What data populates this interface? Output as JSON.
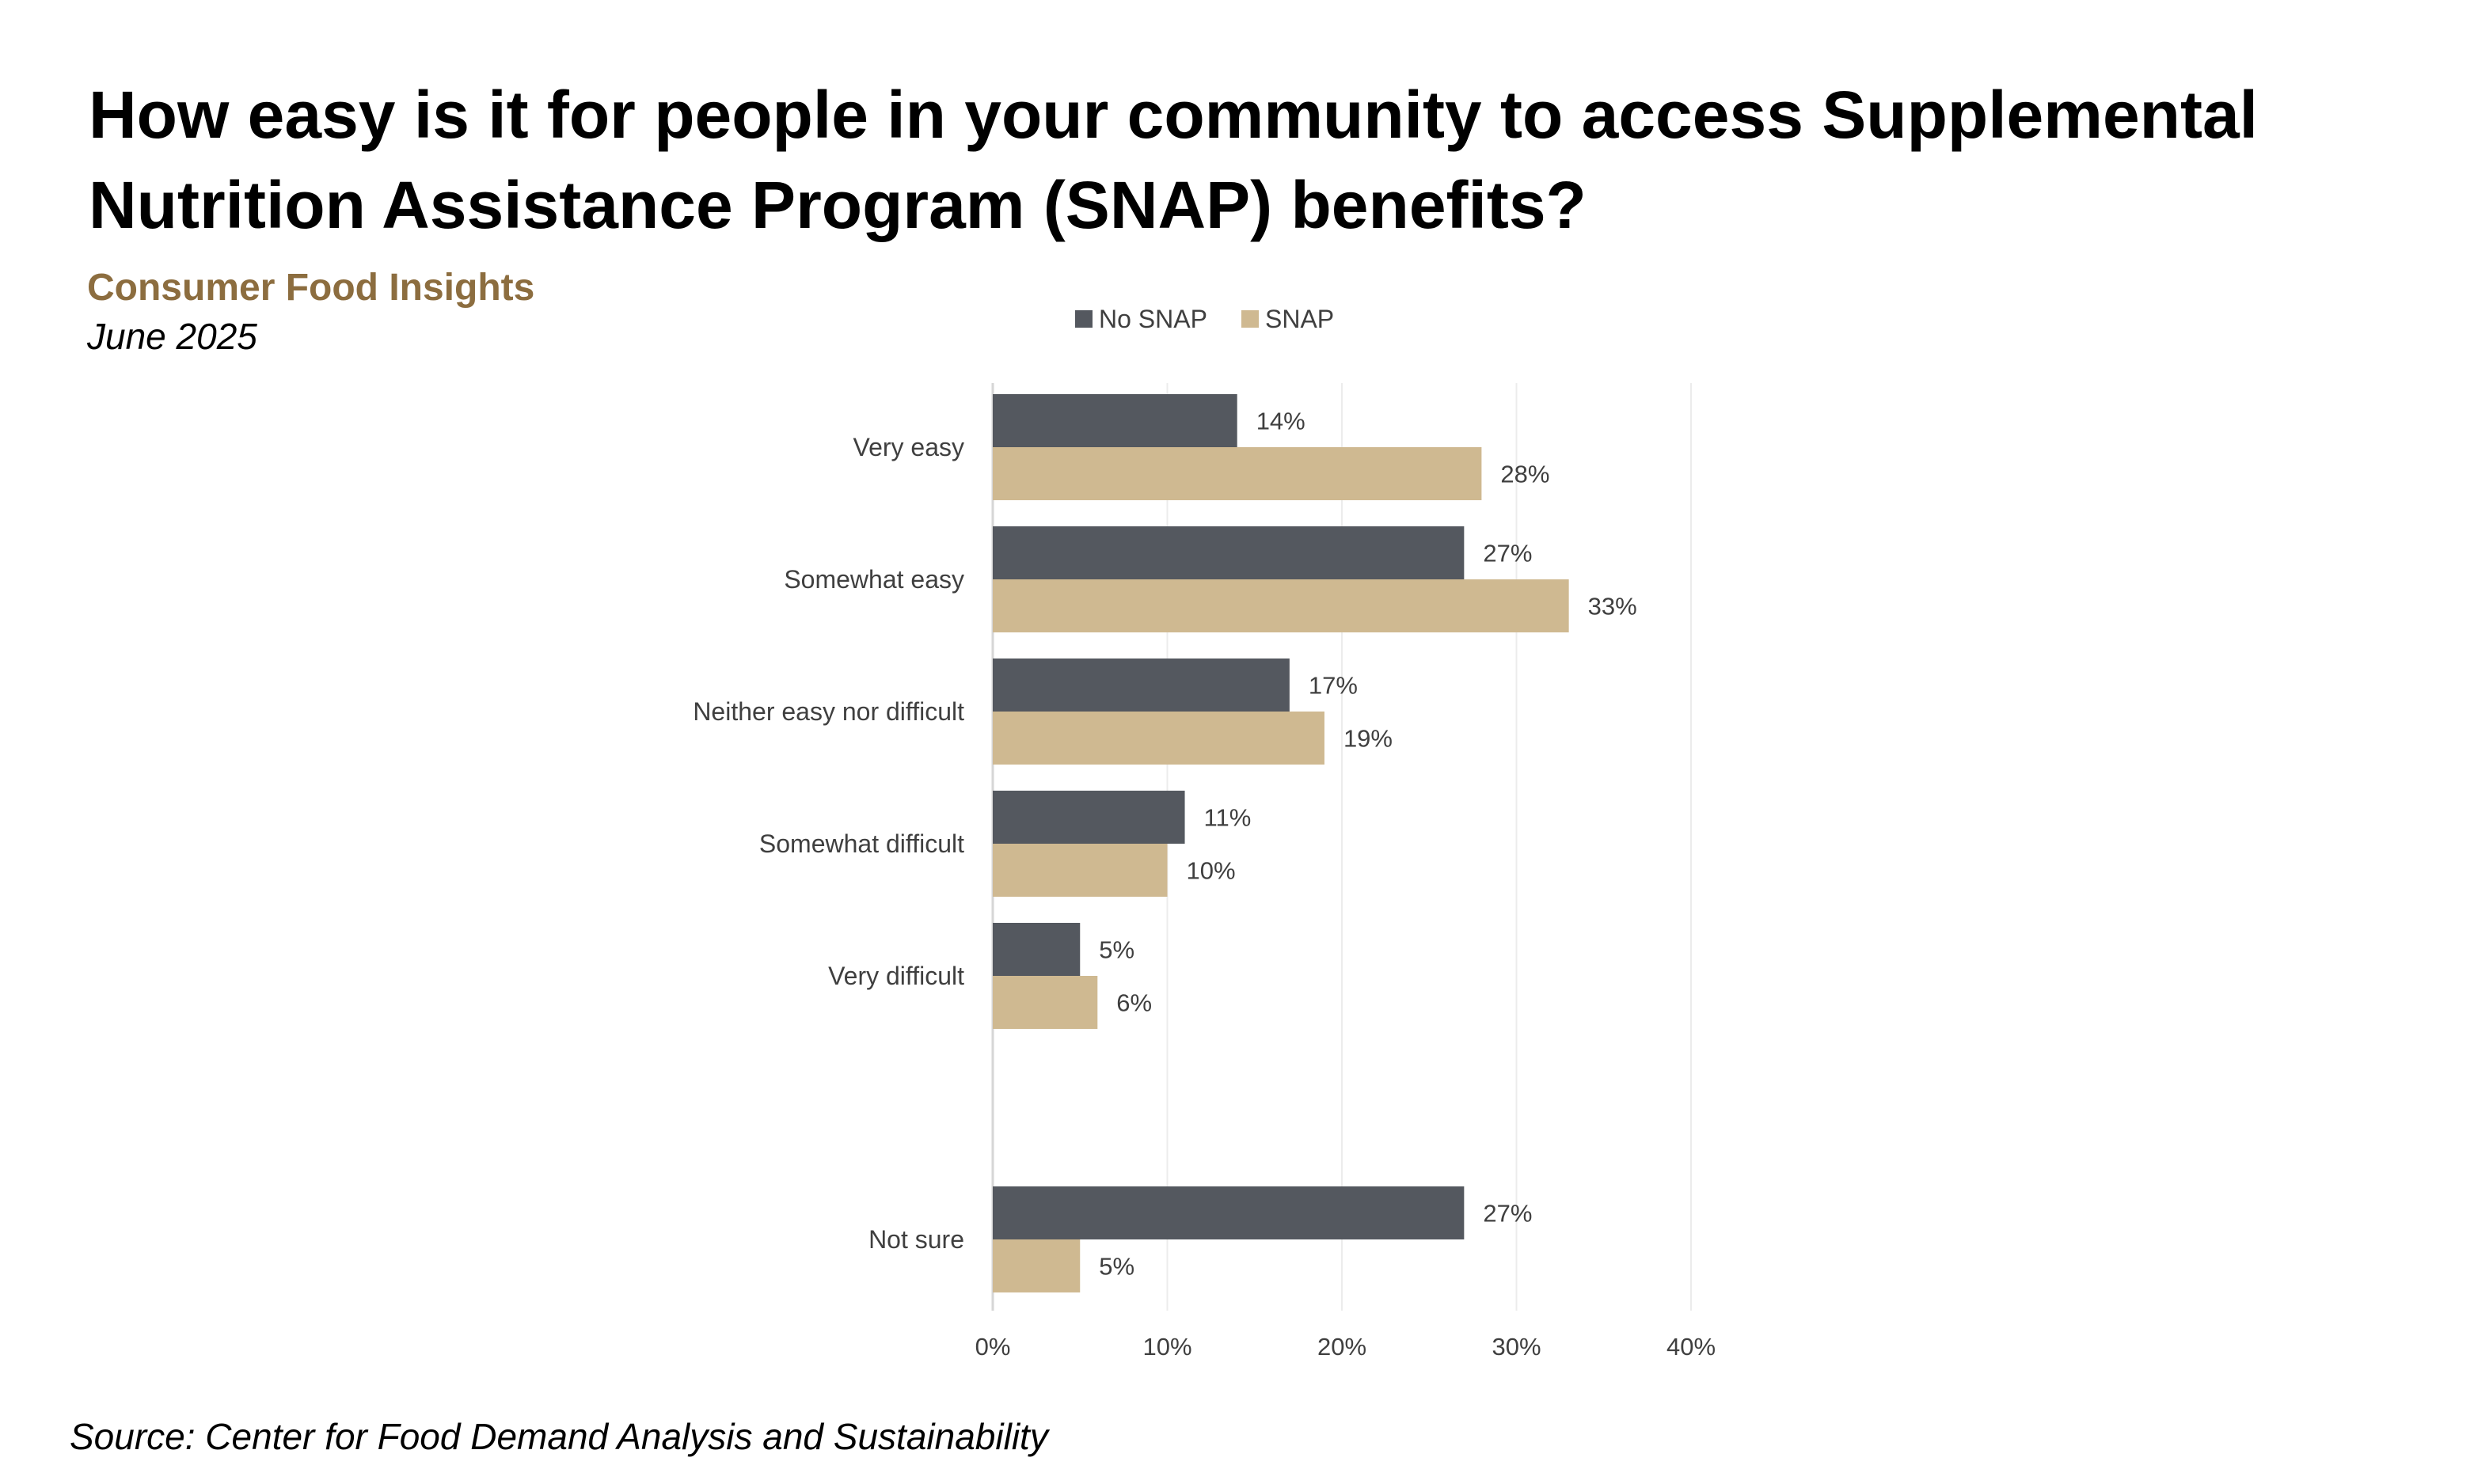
{
  "title": "How easy is it for people in your community to access Supplemental Nutrition Assistance Program (SNAP) benefits?",
  "subtitle": "Consumer Food Insights",
  "date": "June 2025",
  "source": "Source:  Center for Food Demand Analysis and Sustainability",
  "chart_data": {
    "type": "bar",
    "orientation": "horizontal",
    "categories": [
      "Very easy",
      "Somewhat easy",
      "Neither easy nor difficult",
      "Somewhat difficult",
      "Very difficult",
      "Not sure"
    ],
    "series": [
      {
        "name": "No SNAP",
        "color": "#54585f",
        "values": [
          14,
          27,
          17,
          11,
          5,
          27
        ],
        "labels": [
          "14%",
          "27%",
          "17%",
          "11%",
          "5%",
          "27%"
        ]
      },
      {
        "name": "SNAP",
        "color": "#cfb991",
        "values": [
          28,
          33,
          19,
          10,
          6,
          5
        ],
        "labels": [
          "28%",
          "33%",
          "19%",
          "10%",
          "6%",
          "5%"
        ]
      }
    ],
    "xlim": [
      0,
      40
    ],
    "xticks": [
      0,
      10,
      20,
      30,
      40
    ],
    "xtick_labels": [
      "0%",
      "10%",
      "20%",
      "30%",
      "40%"
    ],
    "grid": true,
    "legend": "top-center",
    "xlabel": "",
    "ylabel": ""
  }
}
